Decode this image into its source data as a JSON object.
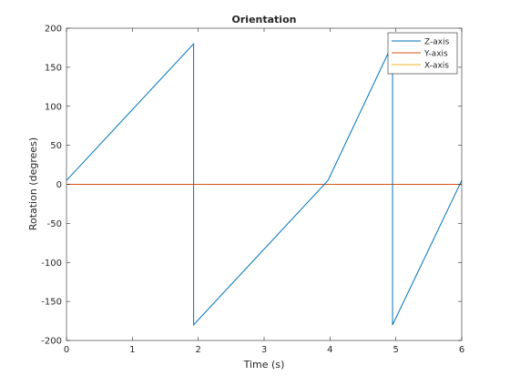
{
  "chart_data": {
    "type": "line",
    "title": "Orientation",
    "xlabel": "Time (s)",
    "ylabel": "Rotation (degrees)",
    "xlim": [
      0,
      6
    ],
    "ylim": [
      -200,
      200
    ],
    "xticks": [
      0,
      1,
      2,
      3,
      4,
      5,
      6
    ],
    "yticks": [
      -200,
      -150,
      -100,
      -50,
      0,
      50,
      100,
      150,
      200
    ],
    "grid": false,
    "legend_position": "top-right",
    "series": [
      {
        "name": "Z-axis",
        "color": "#0072BD",
        "x": [
          0,
          1.93,
          1.93,
          3.97,
          4.95,
          4.95,
          6.0
        ],
        "y": [
          5,
          180,
          -180,
          5,
          180,
          -180,
          5
        ]
      },
      {
        "name": "Y-axis",
        "color": "#D95319",
        "x": [
          0,
          6.0
        ],
        "y": [
          0,
          0
        ]
      },
      {
        "name": "X-axis",
        "color": "#EDB120",
        "x": [
          0,
          6.0
        ],
        "y": [
          0,
          0
        ]
      }
    ]
  }
}
